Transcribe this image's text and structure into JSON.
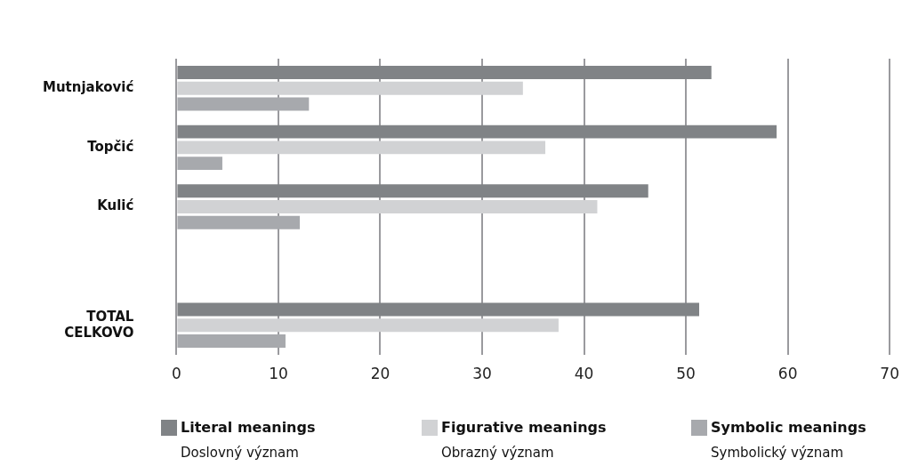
{
  "chart_data": {
    "type": "bar",
    "orientation": "horizontal",
    "categories": [
      "Mutnjaković",
      "Topčić",
      "Kulić",
      null,
      "TOTAL\nCELKOVO"
    ],
    "series": [
      {
        "name": "Literal meanings\nDoslovný význam",
        "color": "#808386",
        "values": [
          52.5,
          58.9,
          46.3,
          null,
          51.3
        ]
      },
      {
        "name": "Figurative meanings\nObrazný význam",
        "color": "#d1d2d4",
        "values": [
          34.0,
          36.2,
          41.3,
          null,
          37.5
        ]
      },
      {
        "name": "Symbolic meanings\nSymbolický význam",
        "color": "#a7a9ad",
        "values": [
          13.0,
          4.5,
          12.1,
          null,
          10.7
        ]
      }
    ],
    "xlim": [
      0,
      70
    ],
    "xticks": [
      0,
      10,
      20,
      30,
      40,
      50,
      60,
      70
    ],
    "grid": "x",
    "legend": "bottom"
  }
}
